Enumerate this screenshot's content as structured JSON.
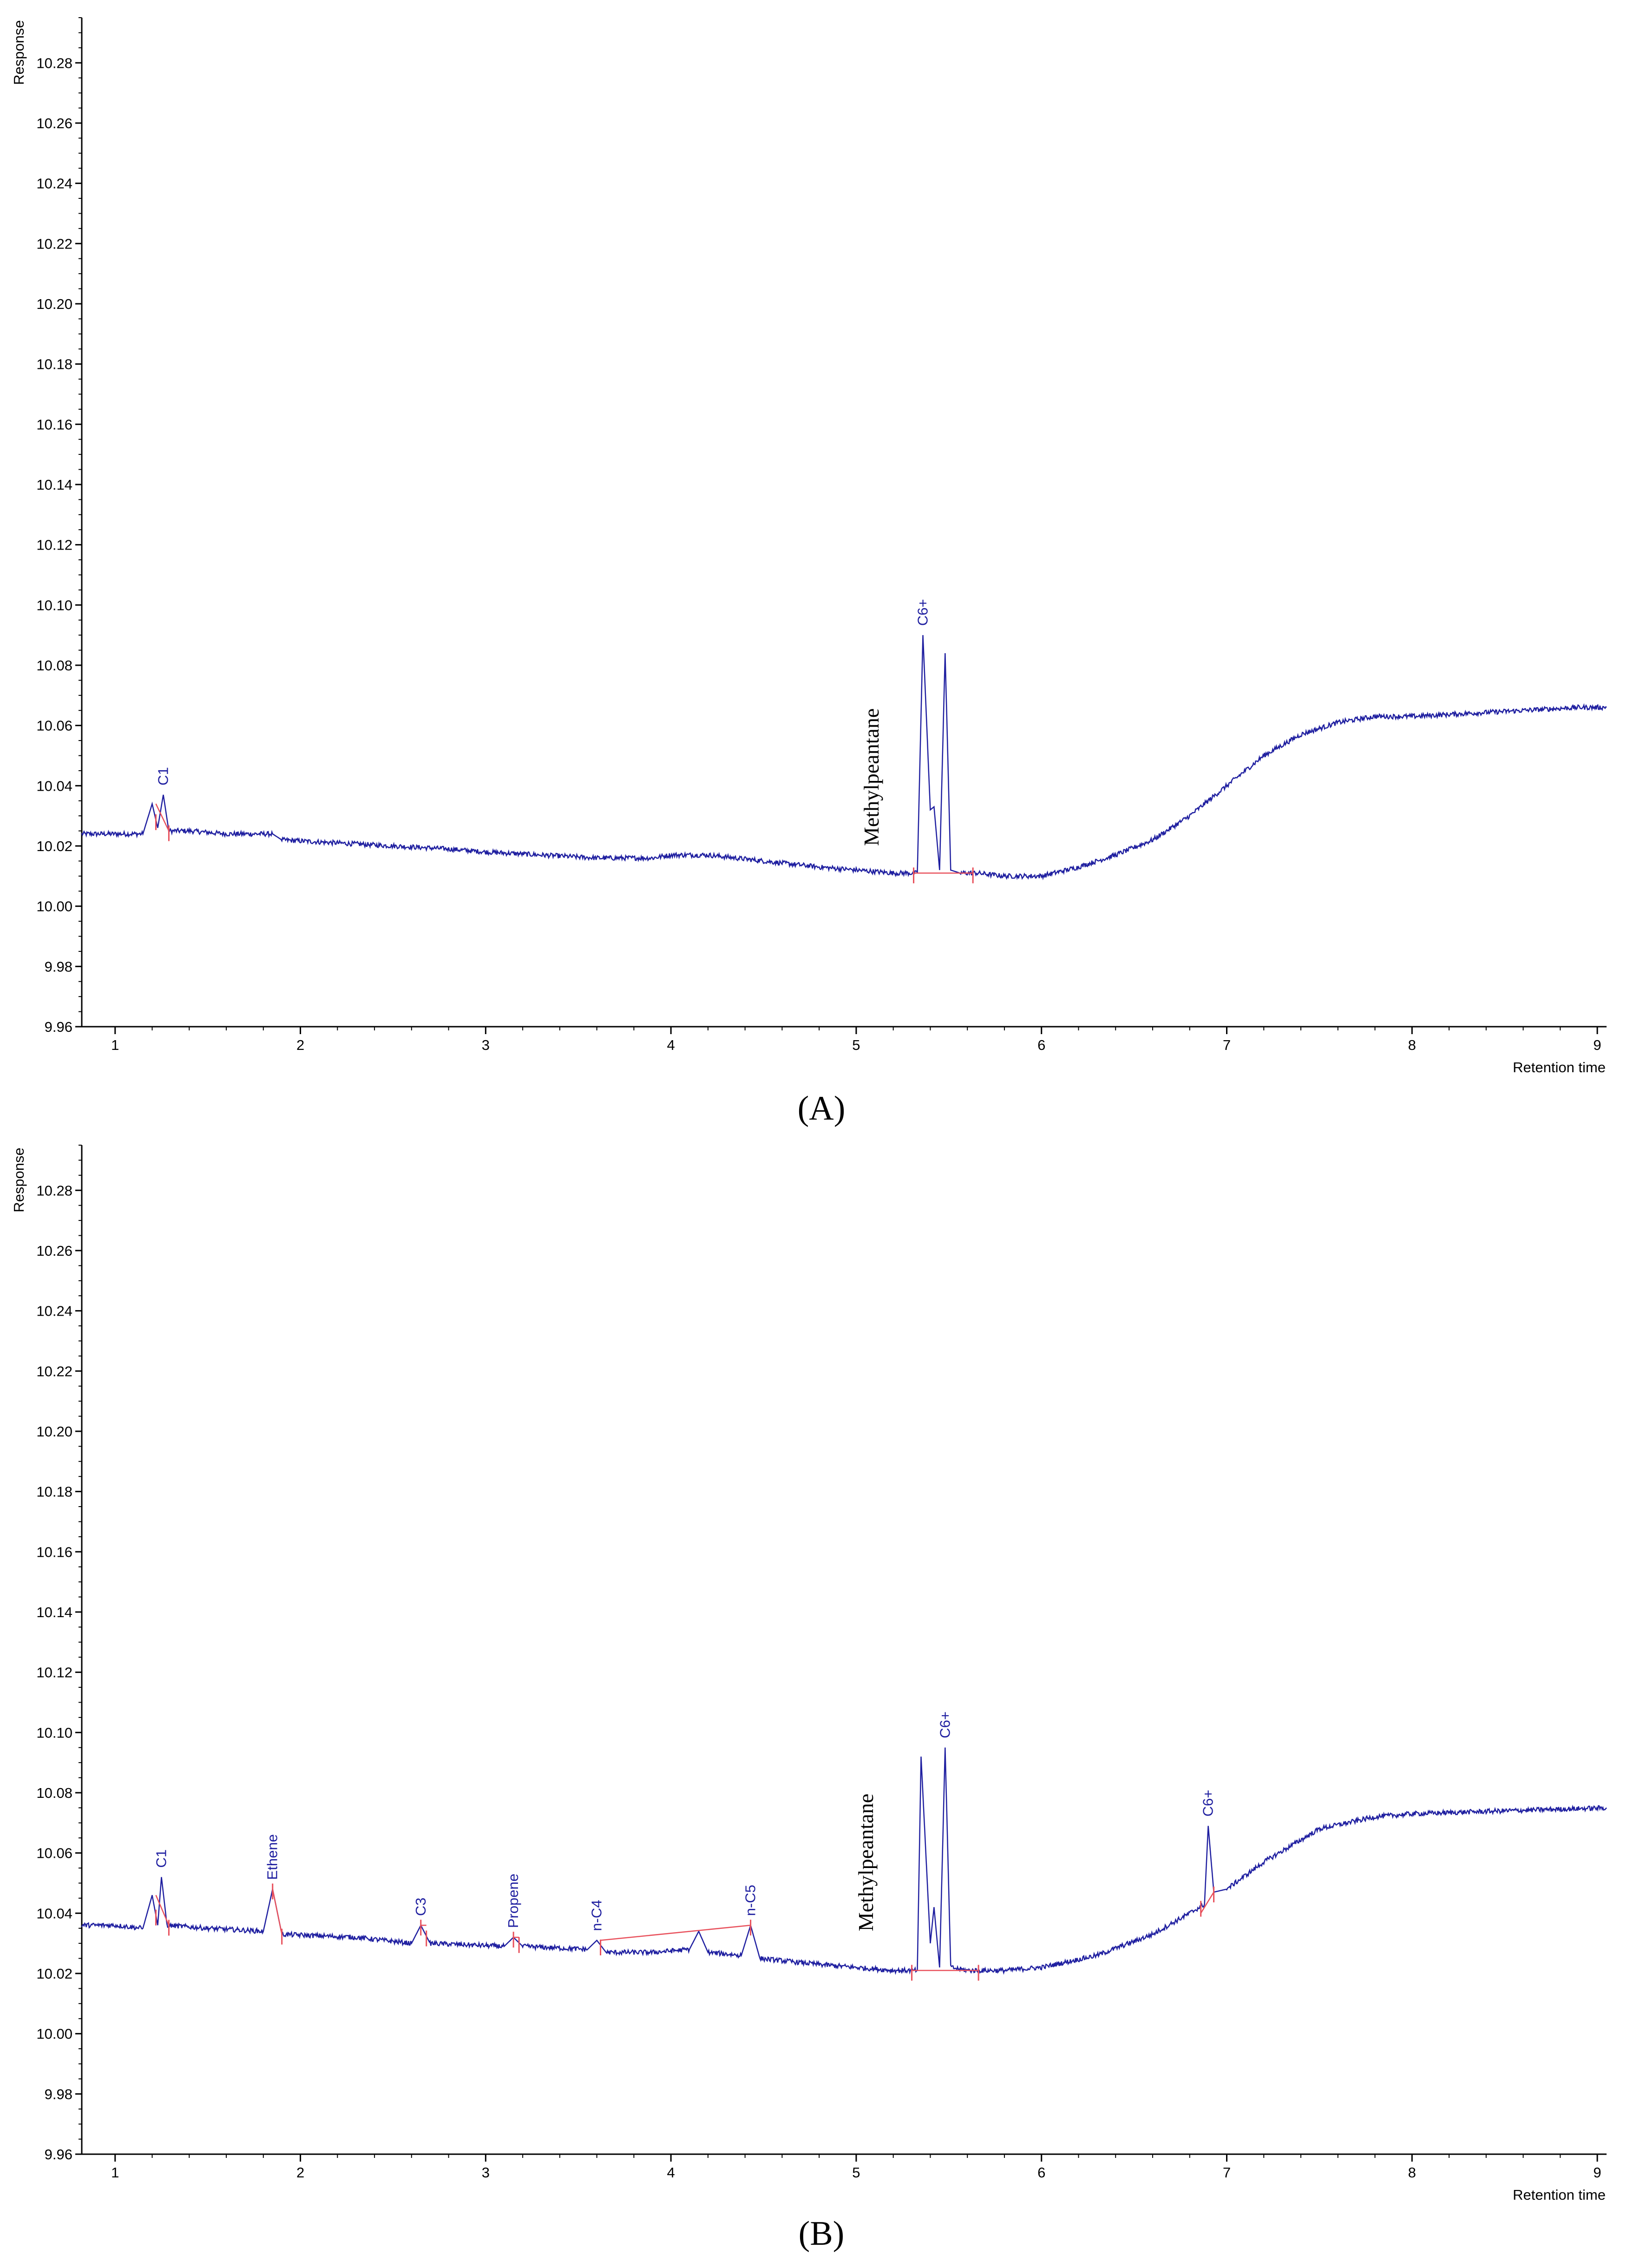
{
  "chart_data": [
    {
      "type": "line",
      "panel_label": "(A)",
      "ylabel": "Response",
      "xlabel": "Retention time",
      "xlim": [
        0.82,
        9.05
      ],
      "ylim": [
        9.96,
        10.295
      ],
      "x_ticks": [
        1,
        2,
        3,
        4,
        5,
        6,
        7,
        8,
        9
      ],
      "y_ticks": [
        9.96,
        9.98,
        10.0,
        10.02,
        10.04,
        10.06,
        10.08,
        10.1,
        10.12,
        10.14,
        10.16,
        10.18,
        10.2,
        10.22,
        10.24,
        10.26,
        10.28
      ],
      "y_tick_labels": [
        "9.96",
        "9.98",
        "10.00",
        "10.02",
        "10.04",
        "10.06",
        "10.08",
        "10.10",
        "10.12",
        "10.14",
        "10.16",
        "10.18",
        "10.20",
        "10.22",
        "10.24",
        "10.26",
        "10.28"
      ],
      "grid": false,
      "line_color": "#1f1fa0",
      "baseline_color": "#e8505b",
      "series": [
        {
          "x": [
            0.82,
            1.0,
            1.15,
            1.2,
            1.23,
            1.26,
            1.29,
            1.4,
            1.6,
            1.85,
            1.9,
            2.2,
            2.5,
            2.8,
            3.0,
            3.3,
            3.6,
            3.9,
            4.0,
            4.2,
            4.5,
            4.8,
            5.0,
            5.2,
            5.33,
            5.36,
            5.4,
            5.42,
            5.45,
            5.48,
            5.51,
            5.56,
            5.65,
            5.8,
            6.0,
            6.2,
            6.4,
            6.6,
            6.8,
            7.0,
            7.2,
            7.4,
            7.6,
            7.8,
            8.0,
            8.3,
            8.6,
            8.9,
            9.05
          ],
          "y": [
            10.024,
            10.024,
            10.024,
            10.034,
            10.026,
            10.037,
            10.025,
            10.025,
            10.024,
            10.024,
            10.022,
            10.021,
            10.02,
            10.019,
            10.018,
            10.017,
            10.016,
            10.016,
            10.017,
            10.017,
            10.015,
            10.013,
            10.012,
            10.011,
            10.011,
            10.09,
            10.032,
            10.033,
            10.012,
            10.084,
            10.012,
            10.011,
            10.011,
            10.01,
            10.01,
            10.013,
            10.017,
            10.022,
            10.03,
            10.04,
            10.05,
            10.057,
            10.061,
            10.063,
            10.063,
            10.064,
            10.065,
            10.066,
            10.066
          ]
        }
      ],
      "peak_labels": [
        {
          "text": "C1",
          "x": 1.26,
          "y": 10.037
        },
        {
          "text": "C6+",
          "x": 5.36,
          "y": 10.09
        }
      ],
      "annotations": [
        {
          "text": "Methylpeantane",
          "x": 5.12,
          "y": 10.02
        }
      ],
      "integration_marks": [
        1.22,
        1.29,
        5.31,
        5.63
      ]
    },
    {
      "type": "line",
      "panel_label": "(B)",
      "ylabel": "Response",
      "xlabel": "Retention time",
      "xlim": [
        0.82,
        9.05
      ],
      "ylim": [
        9.96,
        10.295
      ],
      "x_ticks": [
        1,
        2,
        3,
        4,
        5,
        6,
        7,
        8,
        9
      ],
      "y_ticks": [
        9.96,
        9.98,
        10.0,
        10.02,
        10.04,
        10.06,
        10.08,
        10.1,
        10.12,
        10.14,
        10.16,
        10.18,
        10.2,
        10.22,
        10.24,
        10.26,
        10.28
      ],
      "y_tick_labels": [
        "9.96",
        "9.98",
        "10.00",
        "10.02",
        "10.04",
        "10.06",
        "10.08",
        "10.10",
        "10.12",
        "10.14",
        "10.16",
        "10.18",
        "10.20",
        "10.22",
        "10.24",
        "10.26",
        "10.28"
      ],
      "grid": false,
      "line_color": "#1f1fa0",
      "baseline_color": "#e8505b",
      "series": [
        {
          "x": [
            0.82,
            1.0,
            1.15,
            1.2,
            1.23,
            1.25,
            1.28,
            1.5,
            1.8,
            1.85,
            1.9,
            2.3,
            2.6,
            2.65,
            2.7,
            3.1,
            3.15,
            3.2,
            3.55,
            3.6,
            3.65,
            3.9,
            4.1,
            4.15,
            4.2,
            4.38,
            4.43,
            4.48,
            4.8,
            5.0,
            5.2,
            5.33,
            5.35,
            5.4,
            5.42,
            5.45,
            5.48,
            5.51,
            5.6,
            5.8,
            6.0,
            6.3,
            6.6,
            6.8,
            6.88,
            6.9,
            6.93,
            7.0,
            7.2,
            7.5,
            7.8,
            8.0,
            8.5,
            9.05
          ],
          "y": [
            10.036,
            10.036,
            10.035,
            10.046,
            10.036,
            10.052,
            10.036,
            10.035,
            10.034,
            10.048,
            10.033,
            10.032,
            10.03,
            10.036,
            10.03,
            10.029,
            10.032,
            10.029,
            10.028,
            10.031,
            10.027,
            10.027,
            10.028,
            10.034,
            10.027,
            10.026,
            10.036,
            10.025,
            10.023,
            10.022,
            10.021,
            10.021,
            10.092,
            10.03,
            10.042,
            10.022,
            10.095,
            10.022,
            10.021,
            10.021,
            10.022,
            10.026,
            10.033,
            10.04,
            10.043,
            10.069,
            10.047,
            10.048,
            10.057,
            10.068,
            10.072,
            10.073,
            10.074,
            10.075
          ]
        }
      ],
      "peak_labels": [
        {
          "text": "C1",
          "x": 1.25,
          "y": 10.052
        },
        {
          "text": "Ethene",
          "x": 1.85,
          "y": 10.048
        },
        {
          "text": "C3",
          "x": 2.65,
          "y": 10.036
        },
        {
          "text": "Propene",
          "x": 3.15,
          "y": 10.032
        },
        {
          "text": "n-C4",
          "x": 3.6,
          "y": 10.031
        },
        {
          "text": "n-C5",
          "x": 4.43,
          "y": 10.036
        },
        {
          "text": "C6+",
          "x": 5.48,
          "y": 10.095
        },
        {
          "text": "C6+",
          "x": 6.9,
          "y": 10.069
        }
      ],
      "annotations": [
        {
          "text": "Methylpeantane",
          "x": 5.09,
          "y": 10.034
        }
      ],
      "integration_marks": [
        1.22,
        1.29,
        1.85,
        1.9,
        2.65,
        2.68,
        3.15,
        3.18,
        3.62,
        4.43,
        5.3,
        5.66,
        6.86,
        6.93
      ]
    }
  ]
}
